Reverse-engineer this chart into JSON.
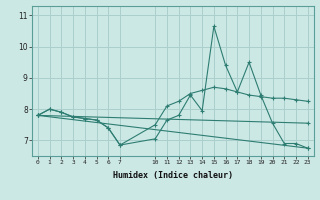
{
  "xlabel": "Humidex (Indice chaleur)",
  "ylabel": "",
  "bg_color": "#cce8e5",
  "grid_color": "#aacfcc",
  "line_color": "#2e7d72",
  "lines": [
    {
      "x": [
        0,
        1,
        2,
        3,
        4,
        5,
        6,
        7,
        10,
        11,
        12,
        13,
        14,
        15,
        16,
        17,
        18,
        19,
        20,
        21,
        22,
        23
      ],
      "y": [
        7.8,
        8.0,
        7.9,
        7.75,
        7.7,
        7.65,
        7.4,
        6.85,
        7.05,
        7.65,
        7.8,
        8.45,
        7.95,
        10.65,
        9.4,
        8.55,
        9.5,
        8.45,
        7.55,
        6.9,
        6.9,
        6.75
      ]
    },
    {
      "x": [
        0,
        1,
        2,
        3,
        4,
        5,
        6,
        7,
        10,
        11,
        12,
        13,
        14,
        15,
        16,
        17,
        18,
        19,
        20,
        21,
        22,
        23
      ],
      "y": [
        7.8,
        8.0,
        7.9,
        7.75,
        7.7,
        7.65,
        7.4,
        6.85,
        7.5,
        8.1,
        8.25,
        8.5,
        8.6,
        8.7,
        8.65,
        8.55,
        8.45,
        8.4,
        8.35,
        8.35,
        8.3,
        8.25
      ]
    },
    {
      "x": [
        0,
        23
      ],
      "y": [
        7.8,
        6.75
      ]
    },
    {
      "x": [
        0,
        23
      ],
      "y": [
        7.8,
        7.55
      ]
    }
  ],
  "xticks": [
    0,
    1,
    2,
    3,
    4,
    5,
    6,
    7,
    10,
    11,
    12,
    13,
    14,
    15,
    16,
    17,
    18,
    19,
    20,
    21,
    22,
    23
  ],
  "xtick_labels": [
    "0",
    "1",
    "2",
    "3",
    "4",
    "5",
    "6",
    "7",
    "10",
    "11",
    "12",
    "13",
    "14",
    "15",
    "16",
    "17",
    "18",
    "19",
    "20",
    "21",
    "22",
    "23"
  ],
  "yticks": [
    7,
    8,
    9,
    10,
    11
  ],
  "xlim": [
    -0.5,
    23.5
  ],
  "ylim": [
    6.5,
    11.3
  ]
}
